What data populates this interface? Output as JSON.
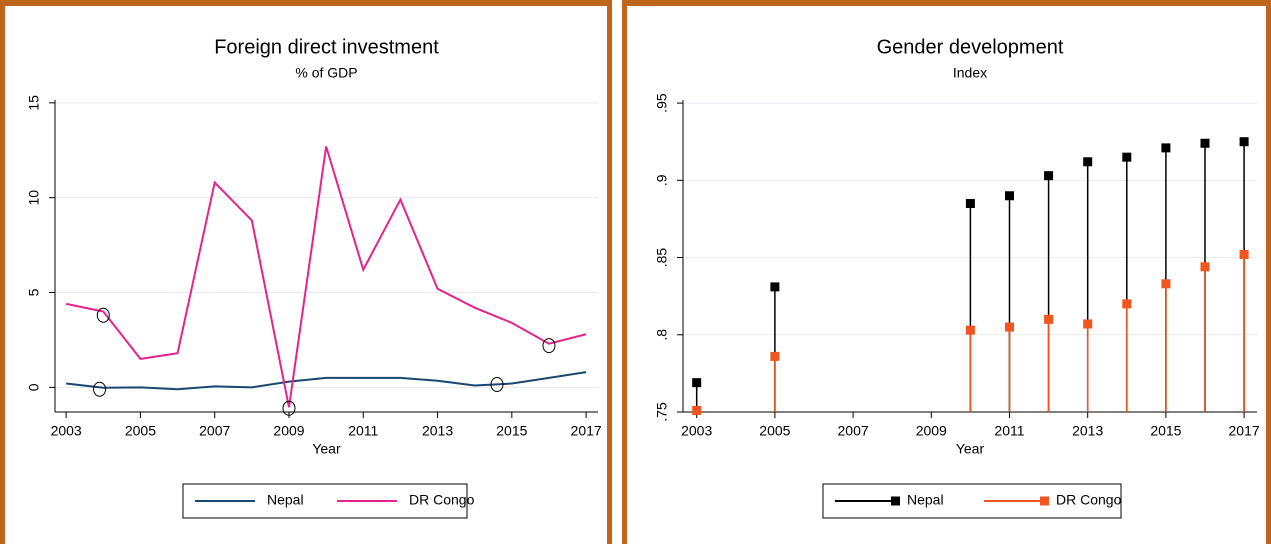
{
  "chart_data": [
    {
      "type": "line",
      "title": "Foreign direct investment",
      "subtitle": "% of GDP",
      "x_label": "Year",
      "x": [
        2003,
        2004,
        2005,
        2006,
        2007,
        2008,
        2009,
        2010,
        2011,
        2012,
        2013,
        2014,
        2015,
        2016,
        2017
      ],
      "series": [
        {
          "name": "Nepal",
          "color": "#1a476f",
          "values": [
            0.2,
            -0.02,
            0.0,
            -0.1,
            0.05,
            0.0,
            0.3,
            0.5,
            0.5,
            0.5,
            0.35,
            0.1,
            0.2,
            0.5,
            0.8
          ]
        },
        {
          "name": "DR Congo",
          "color": "#e5238c",
          "values": [
            4.4,
            4.0,
            1.5,
            1.8,
            10.8,
            8.8,
            -1.05,
            12.7,
            6.2,
            9.9,
            5.2,
            4.2,
            3.4,
            2.3,
            2.8
          ]
        }
      ],
      "highlights": {
        "x": [
          2003.9,
          2004,
          2009,
          2014.6,
          2016
        ],
        "y": [
          -0.1,
          3.8,
          -1.1,
          0.15,
          2.2
        ]
      },
      "xlim": [
        2002.7,
        2017.32
      ],
      "xticks": [
        2003,
        2005,
        2007,
        2009,
        2011,
        2013,
        2015,
        2017
      ],
      "ylim": [
        -1.3,
        15.15
      ],
      "yticks": [
        0,
        5,
        10,
        15
      ],
      "grid": true,
      "legend": "bottom"
    },
    {
      "type": "spike",
      "title": "Gender development",
      "subtitle": "Index",
      "x_label": "Year",
      "x": [
        2003,
        2005,
        2010,
        2011,
        2012,
        2013,
        2014,
        2015,
        2016,
        2017
      ],
      "series": [
        {
          "name": "Nepal",
          "color": "#000000",
          "values": [
            0.769,
            0.831,
            0.885,
            0.89,
            0.903,
            0.912,
            0.915,
            0.921,
            0.924,
            0.925
          ]
        },
        {
          "name": "DR Congo",
          "color": "#f0561d",
          "values": [
            0.751,
            0.786,
            0.803,
            0.805,
            0.81,
            0.807,
            0.82,
            0.833,
            0.844,
            0.852
          ]
        }
      ],
      "xlim": [
        2002.65,
        2017.33
      ],
      "xticks": [
        2003,
        2005,
        2007,
        2009,
        2011,
        2013,
        2015,
        2017
      ],
      "ylim": [
        0.75,
        0.952
      ],
      "yticks": [
        {
          "value": 0.75,
          "label": ".75"
        },
        {
          "value": 0.8,
          "label": ".8"
        },
        {
          "value": 0.85,
          "label": ".85"
        },
        {
          "value": 0.9,
          "label": ".9"
        },
        {
          "value": 0.95,
          "label": ".95"
        }
      ],
      "grid": true,
      "legend": "bottom"
    }
  ]
}
